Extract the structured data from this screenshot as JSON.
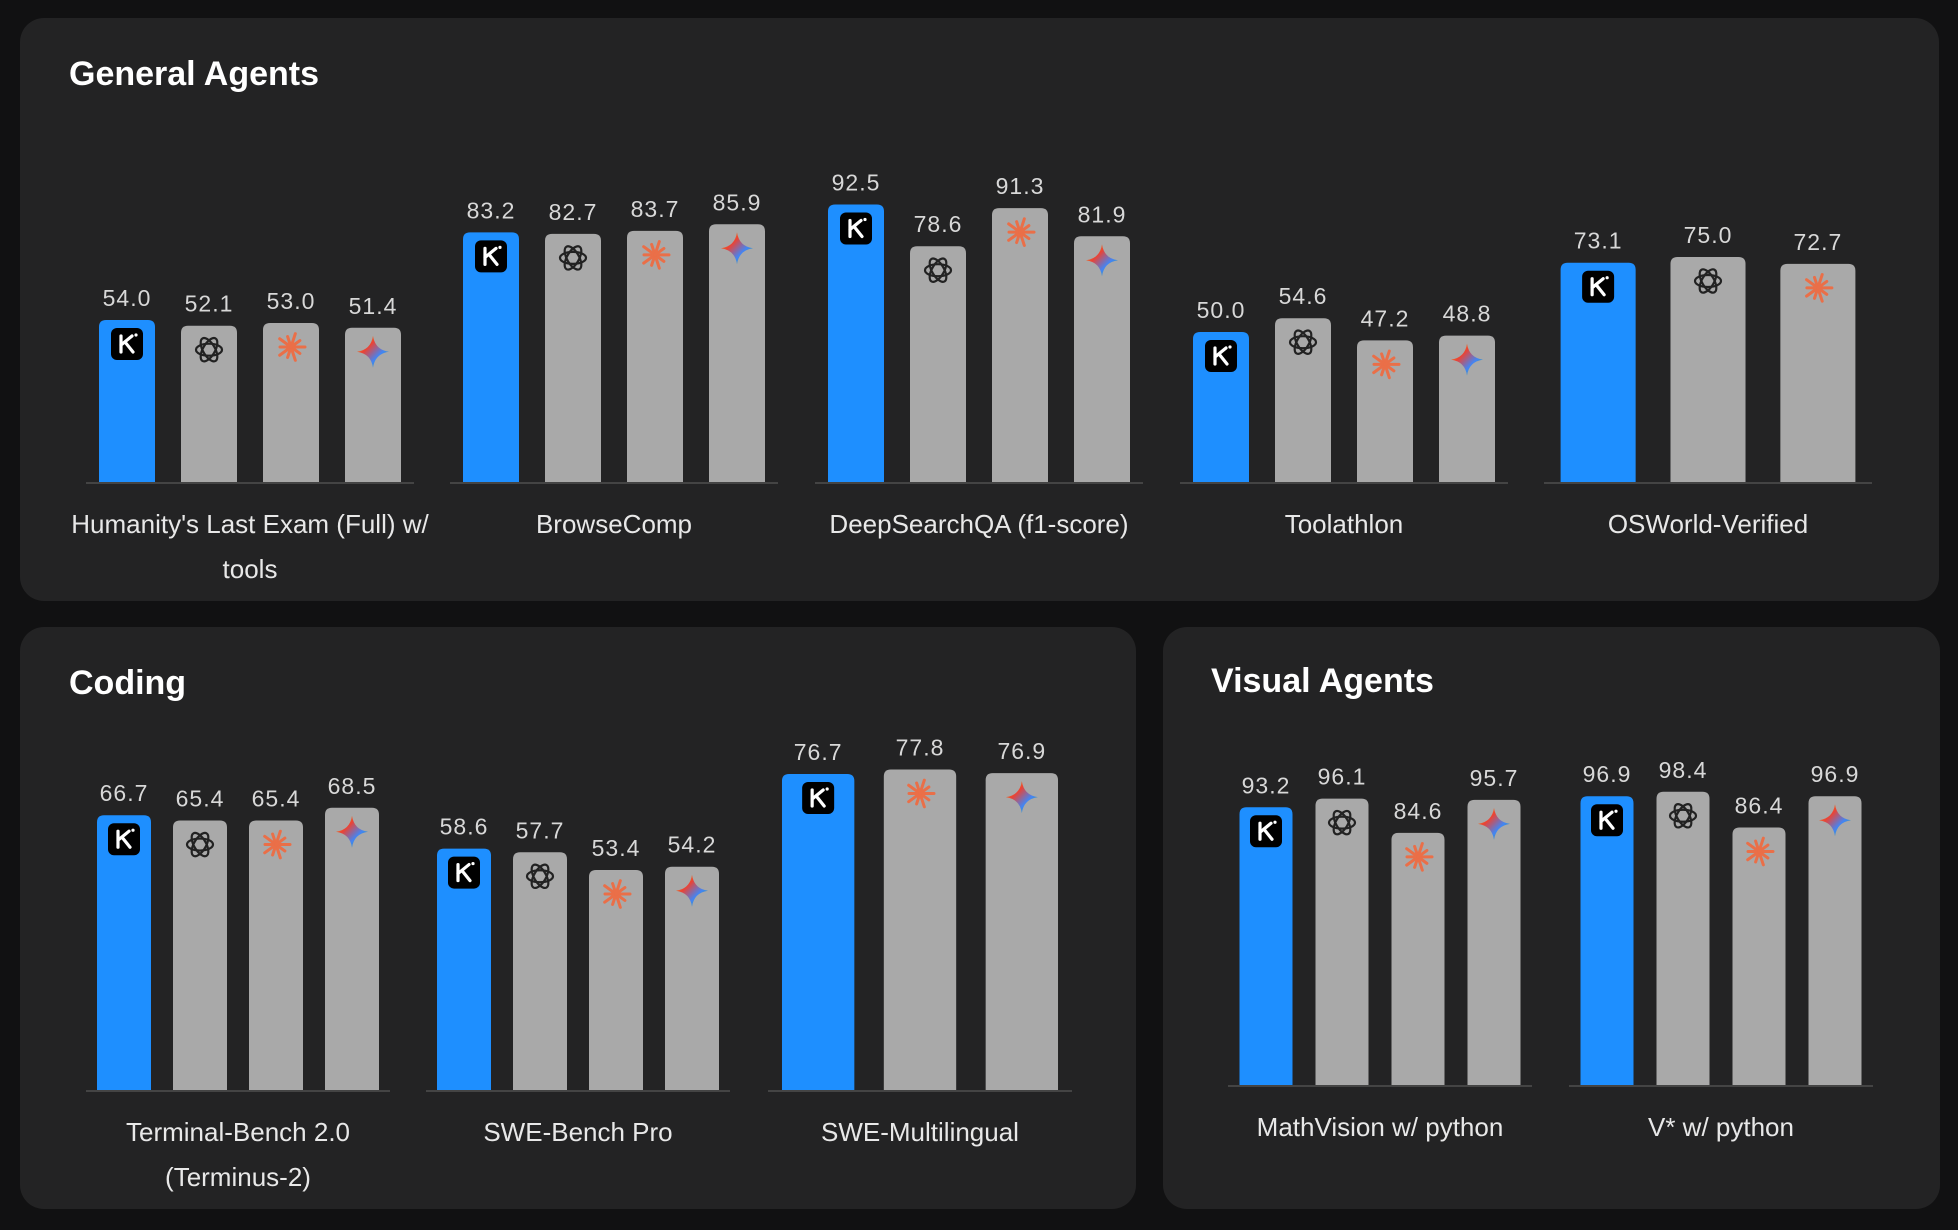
{
  "chart_data": [
    {
      "type": "bar",
      "title": "General Agents",
      "categories": [
        "Humanity's Last Exam (Full) w/ tools",
        "BrowseComp",
        "DeepSearchQA (f1-score)",
        "Toolathlon",
        "OSWorld-Verified"
      ],
      "series": [
        {
          "color": "#1e8fff",
          "values": [
            54.0,
            83.2,
            92.5,
            50.0,
            73.1
          ],
          "value_labels": [
            "54.0",
            "83.2",
            "92.5",
            "50.0",
            "73.1"
          ]
        },
        {
          "color": "#a9a9a9",
          "values": [
            52.1,
            82.7,
            78.6,
            54.6,
            75.0
          ],
          "value_labels": [
            "52.1",
            "82.7",
            "78.6",
            "54.6",
            "75.0"
          ]
        },
        {
          "color": "#a9a9a9",
          "values": [
            53.0,
            83.7,
            91.3,
            47.2,
            72.7
          ],
          "value_labels": [
            "53.0",
            "83.7",
            "91.3",
            "47.2",
            "72.7"
          ]
        },
        {
          "color": "#a9a9a9",
          "values": [
            51.4,
            85.9,
            81.9,
            48.8,
            null
          ],
          "value_labels": [
            "51.4",
            "85.9",
            "81.9",
            "48.8",
            null
          ]
        }
      ],
      "ylim": [
        0,
        100
      ]
    },
    {
      "type": "bar",
      "title": "Coding",
      "categories": [
        "Terminal-Bench 2.0 (Terminus-2)",
        "SWE-Bench Pro",
        "SWE-Multilingual"
      ],
      "series": [
        {
          "color": "#1e8fff",
          "values": [
            66.7,
            58.6,
            76.7
          ],
          "value_labels": [
            "66.7",
            "58.6",
            "76.7"
          ]
        },
        {
          "color": "#a9a9a9",
          "values": [
            65.4,
            57.7,
            null
          ],
          "value_labels": [
            "65.4",
            "57.7",
            null
          ]
        },
        {
          "color": "#a9a9a9",
          "values": [
            65.4,
            53.4,
            77.8
          ],
          "value_labels": [
            "65.4",
            "53.4",
            "77.8"
          ]
        },
        {
          "color": "#a9a9a9",
          "values": [
            68.5,
            54.2,
            76.9
          ],
          "value_labels": [
            "68.5",
            "54.2",
            "76.9"
          ]
        }
      ],
      "ylim": [
        0,
        100
      ]
    },
    {
      "type": "bar",
      "title": "Visual Agents",
      "categories": [
        "MathVision w/ python",
        "V* w/ python"
      ],
      "series": [
        {
          "color": "#1e8fff",
          "values": [
            93.2,
            96.9
          ],
          "value_labels": [
            "93.2",
            "96.9"
          ]
        },
        {
          "color": "#a9a9a9",
          "values": [
            96.1,
            98.4
          ],
          "value_labels": [
            "96.1",
            "98.4"
          ]
        },
        {
          "color": "#a9a9a9",
          "values": [
            84.6,
            86.4
          ],
          "value_labels": [
            "84.6",
            "86.4"
          ]
        },
        {
          "color": "#a9a9a9",
          "values": [
            95.7,
            96.9
          ],
          "value_labels": [
            "95.7",
            "96.9"
          ]
        }
      ],
      "ylim": [
        0,
        100
      ]
    }
  ]
}
